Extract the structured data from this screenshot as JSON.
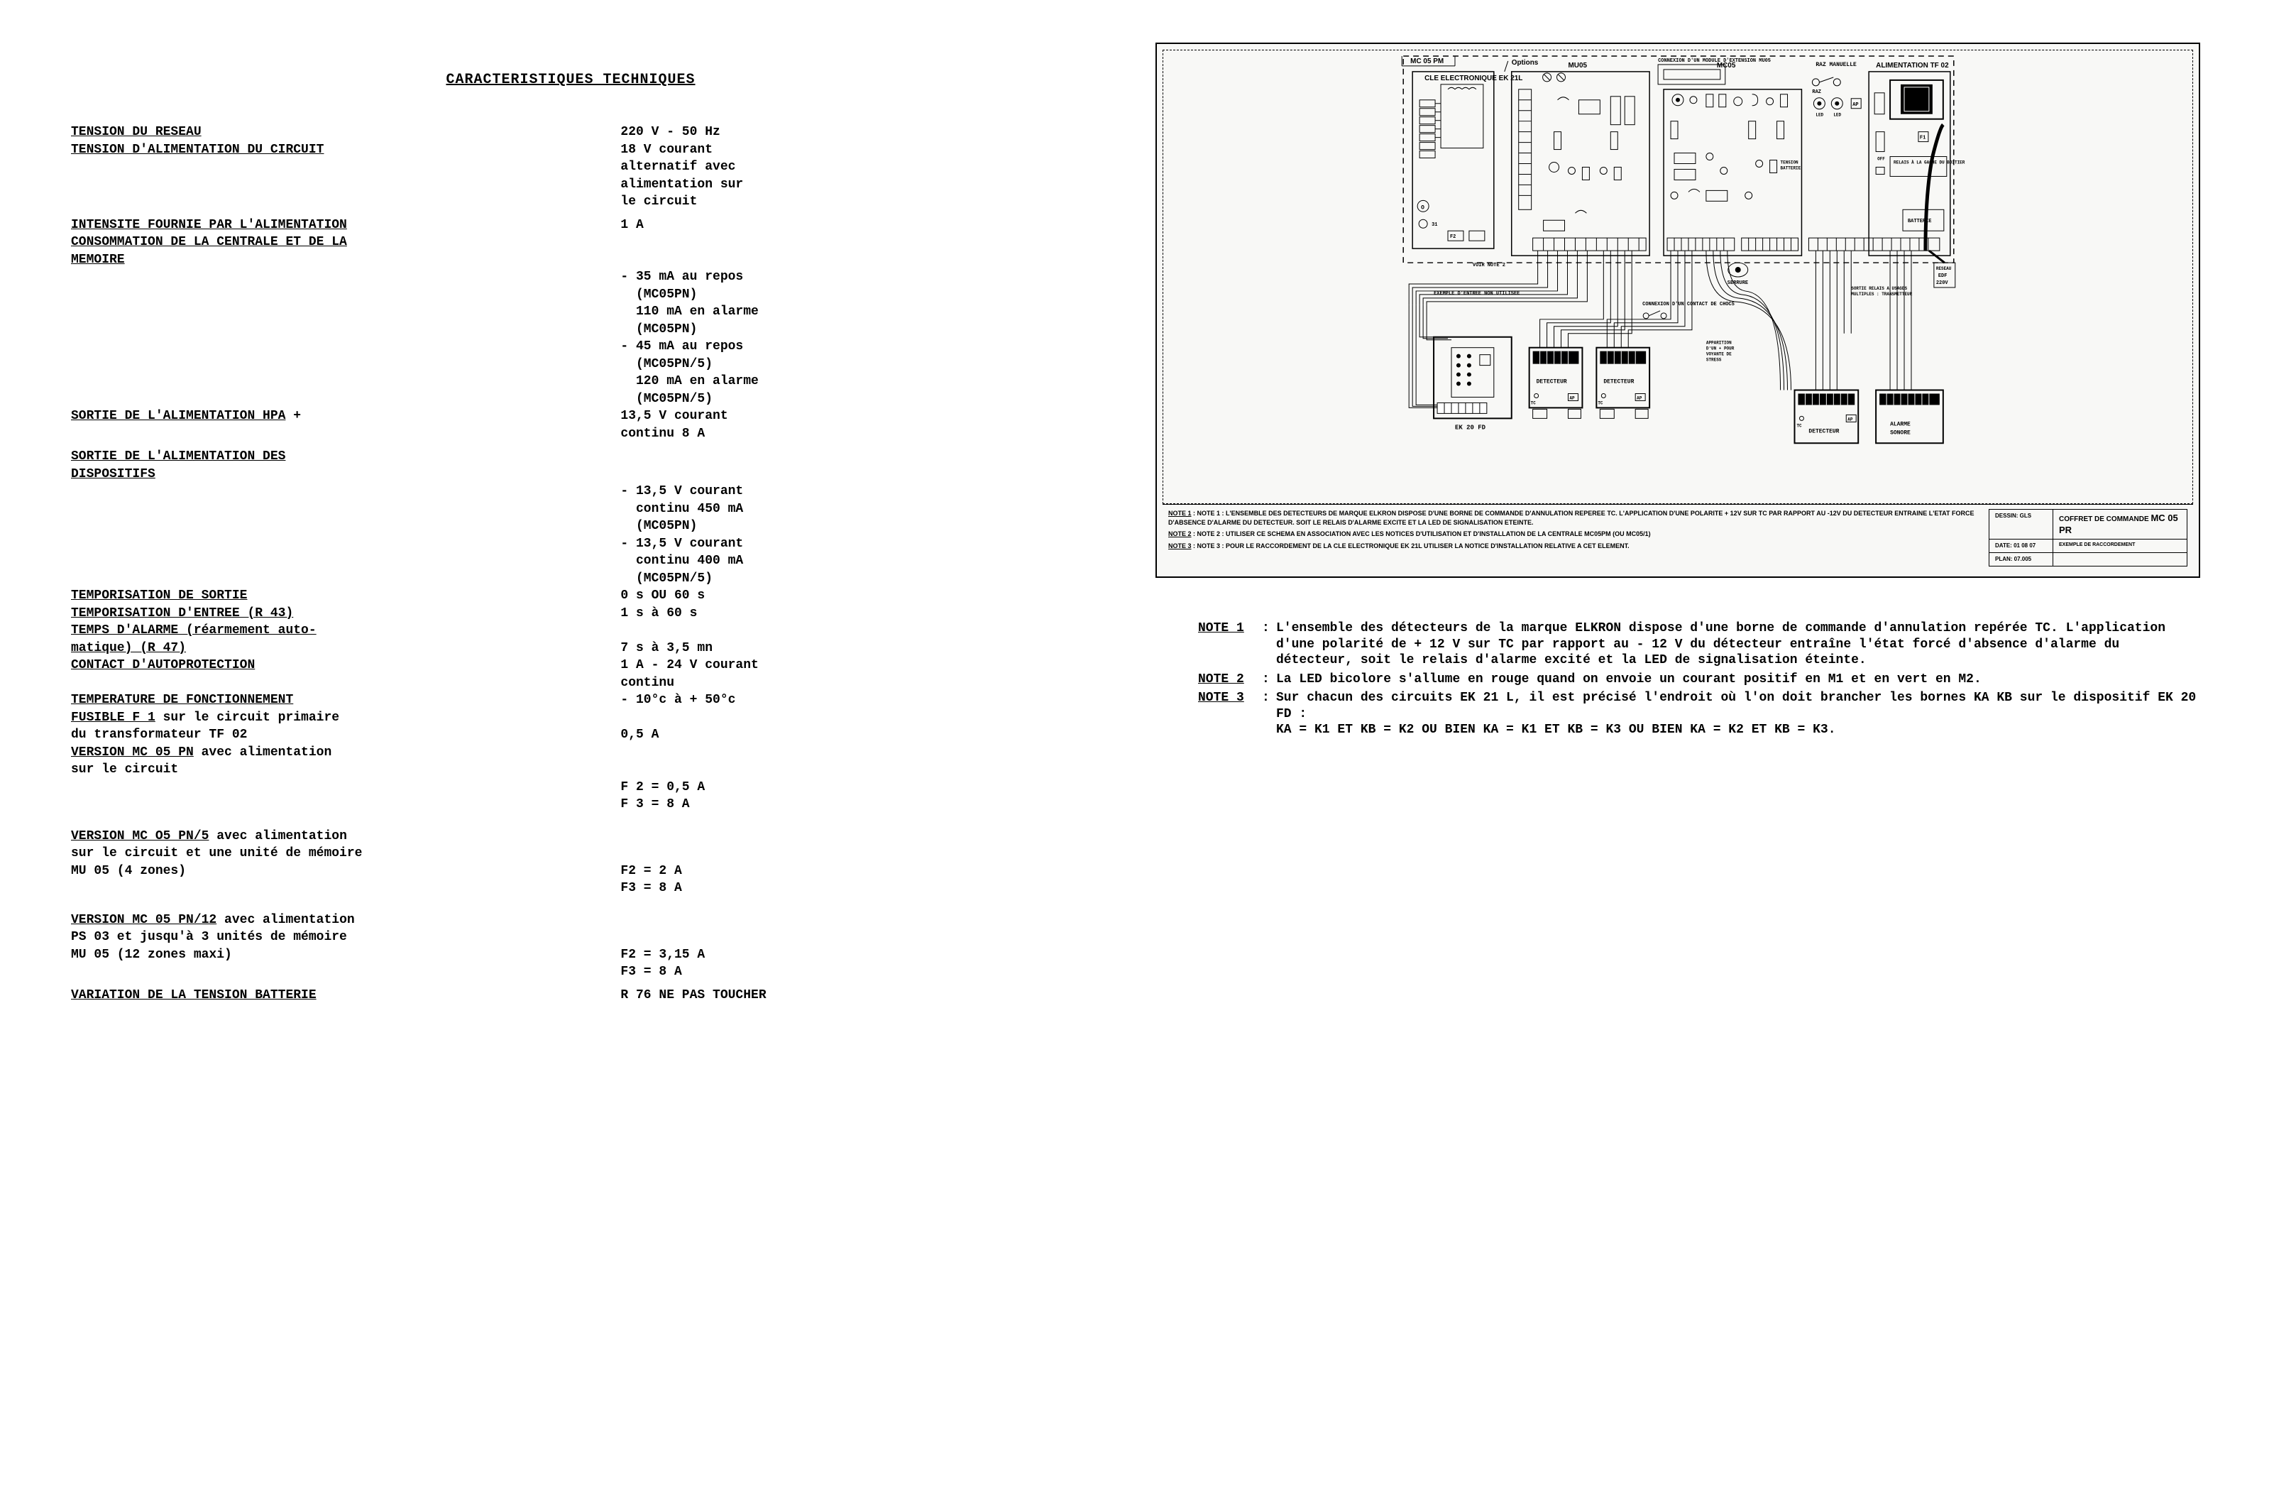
{
  "left": {
    "title": "CARACTERISTIQUES TECHNIQUES",
    "rows": [
      {
        "label": "TENSION DU RESEAU",
        "value": "220 V - 50 Hz"
      },
      {
        "label": "TENSION D'ALIMENTATION DU CIRCUIT",
        "value": "18 V courant"
      },
      {
        "value2": "alternatif avec"
      },
      {
        "value2": "alimentation sur"
      },
      {
        "value2": "le circuit"
      },
      {
        "label": "INTENSITE FOURNIE PAR L'ALIMENTATION",
        "value": "1 A",
        "spacer_before": "sm"
      },
      {
        "label": "CONSOMMATION DE LA CENTRALE ET DE LA"
      },
      {
        "label": "MEMOIRE",
        "value": ""
      },
      {
        "value2": "- 35 mA au repos"
      },
      {
        "value2": "  (MC05PN)"
      },
      {
        "value2": "  110 mA en alarme"
      },
      {
        "value2": "  (MC05PN)"
      },
      {
        "value2": "- 45 mA au repos"
      },
      {
        "value2": "  (MC05PN/5)"
      },
      {
        "value2": "  120 mA en alarme"
      },
      {
        "value2": "  (MC05PN/5)"
      },
      {
        "label": "SORTIE DE L'ALIMENTATION HPA",
        "label_suffix": " +",
        "value": "13,5 V courant"
      },
      {
        "value2": "continu 8 A"
      },
      {
        "label": "SORTIE DE L'ALIMENTATION DES",
        "spacer_before": "sm"
      },
      {
        "label": "DISPOSITIFS"
      },
      {
        "value2": "- 13,5 V courant"
      },
      {
        "value2": "  continu 450 mA"
      },
      {
        "value2": "  (MC05PN)"
      },
      {
        "value2": "- 13,5 V courant"
      },
      {
        "value2": "  continu 400 mA"
      },
      {
        "value2": "  (MC05PN/5)"
      },
      {
        "label": "TEMPORISATION DE SORTIE",
        "value": "0 s OU 60 s"
      },
      {
        "label": "TEMPORISATION D'ENTREE (R 43)",
        "value": "1 s à 60 s"
      },
      {
        "label": "TEMPS D'ALARME (réarmement auto-"
      },
      {
        "label": "matique) (R 47)",
        "value": "7 s à 3,5 mn"
      },
      {
        "label": "CONTACT D'AUTOPROTECTION",
        "value": "1 A - 24 V courant"
      },
      {
        "value2": "continu"
      },
      {
        "label": "TEMPERATURE DE FONCTIONNEMENT",
        "value": "- 10°c à + 50°c"
      },
      {
        "label": "FUSIBLE F 1",
        "label_suffix": " sur le circuit primaire"
      },
      {
        "note": "du transformateur TF 02",
        "value": "0,5 A"
      },
      {
        "label": "VERSION MC 05 PN",
        "label_suffix": " avec alimentation"
      },
      {
        "note": "sur le circuit",
        "value": ""
      },
      {
        "value2": "F 2 = 0,5 A"
      },
      {
        "value2": "F 3 = 8 A"
      },
      {
        "label": "VERSION MC O5 PN/5",
        "label_suffix": " avec alimentation",
        "spacer_before": "md"
      },
      {
        "note": "sur le circuit et une unité de mémoire"
      },
      {
        "note": "MU 05 (4 zones)",
        "value": "F2 = 2 A"
      },
      {
        "value2": "F3 = 8 A"
      },
      {
        "label": "VERSION MC 05 PN/12",
        "label_suffix": " avec alimentation",
        "spacer_before": "md"
      },
      {
        "note": "PS 03 et jusqu'à 3 unités de mémoire"
      },
      {
        "note": "MU 05 (12 zones maxi)",
        "value": "F2 = 3,15 A"
      },
      {
        "value2": "F3 = 8 A"
      },
      {
        "label": "VARIATION DE LA TENSION BATTERIE",
        "value": "R 76 NE PAS TOUCHER",
        "spacer_before": "sm"
      }
    ]
  },
  "diagram": {
    "top_labels": {
      "mc05pm": "MC 05 PM",
      "options": "Options",
      "mu05": "MU05",
      "connection": "CONNEXION D'UN MODULE D'EXTENSION MU05",
      "mc05": "MC05",
      "raz_manuelle": "RAZ MANUELLE",
      "alimentation": "ALIMENTATION TF 02",
      "cle": "CLE ELECTRONIQUE EK 21L"
    },
    "blocks": {
      "ek20fd": "EK 20 FD",
      "detecteur1": "DETECTEUR",
      "detecteur2": "DETECTEUR",
      "detecteur3": "DETECTEUR",
      "alarme": "ALARME SONORE",
      "exemple": "EXEMPLE D'ENTREE NON UTILISEE",
      "contact_choc": "CONNEXION D'UN CONTACT DE CHOCS",
      "serrure": "SERRURE",
      "relais": "RELAIS À LA GACHE DU BOITIER",
      "batterie": "BATTERIE",
      "reseau": "RESEAU EDF 220V",
      "sortie_relais": "SORTIE RELAIS A USAGES MULTIPLES : TRANSMETTEUR",
      "voir_note": "VOIR NOTE 2",
      "apparition": "APPARITION D'UN + POUR VOYANTE DE STRESS"
    },
    "notes_block": {
      "n1": "NOTE 1 : L'ENSEMBLE DES DETECTEURS DE MARQUE ELKRON DISPOSE D'UNE BORNE DE COMMANDE D'ANNULATION REPEREE TC. L'APPLICATION D'UNE POLARITE + 12V SUR TC PAR RAPPORT AU -12V DU DETECTEUR ENTRAINE L'ETAT FORCE D'ABSENCE D'ALARME DU DETECTEUR. SOIT LE RELAIS D'ALARME EXCITE ET LA LED DE SIGNALISATION ETEINTE.",
      "n2": "NOTE 2 : UTILISER CE SCHEMA EN ASSOCIATION AVEC LES NOTICES D'UTILISATION ET D'INSTALLATION DE LA CENTRALE MC05PM (OU MC05/1)",
      "n3": "NOTE 3 : POUR LE RACCORDEMENT DE LA CLE ELECTRONIQUE EK 21L UTILISER LA NOTICE D'INSTALLATION RELATIVE A CET ELEMENT."
    },
    "title_block": {
      "dessin": "DESSIN: GLS",
      "date": "DATE: 01 08 07",
      "plan": "PLAN: 07.005",
      "title": "COFFRET DE COMMANDE",
      "model": "MC 05 PR",
      "sub": "EXEMPLE DE RACCORDEMENT"
    }
  },
  "notes": [
    {
      "label": "NOTE 1",
      "text": "L'ensemble des détecteurs de la marque ELKRON dispose d'une borne de commande d'annulation repérée TC. L'application d'une polarité de + 12 V sur TC  par rapport au - 12 V du détecteur entraîne l'état forcé d'absence d'alarme du détecteur, soit le relais d'alarme excité et la LED de signalisation éteinte."
    },
    {
      "label": "NOTE 2",
      "text": "La LED bicolore s'allume en rouge quand on envoie un courant positif en M1 et en vert en M2."
    },
    {
      "label": "NOTE 3",
      "text": "Sur chacun des circuits EK 21 L, il est précisé l'endroit où l'on doit brancher les bornes KA KB sur le dispositif EK 20 FD :\nKA = K1 ET KB = K2 OU BIEN KA = K1 ET KB = K3 OU BIEN KA = K2 ET KB = K3."
    }
  ]
}
